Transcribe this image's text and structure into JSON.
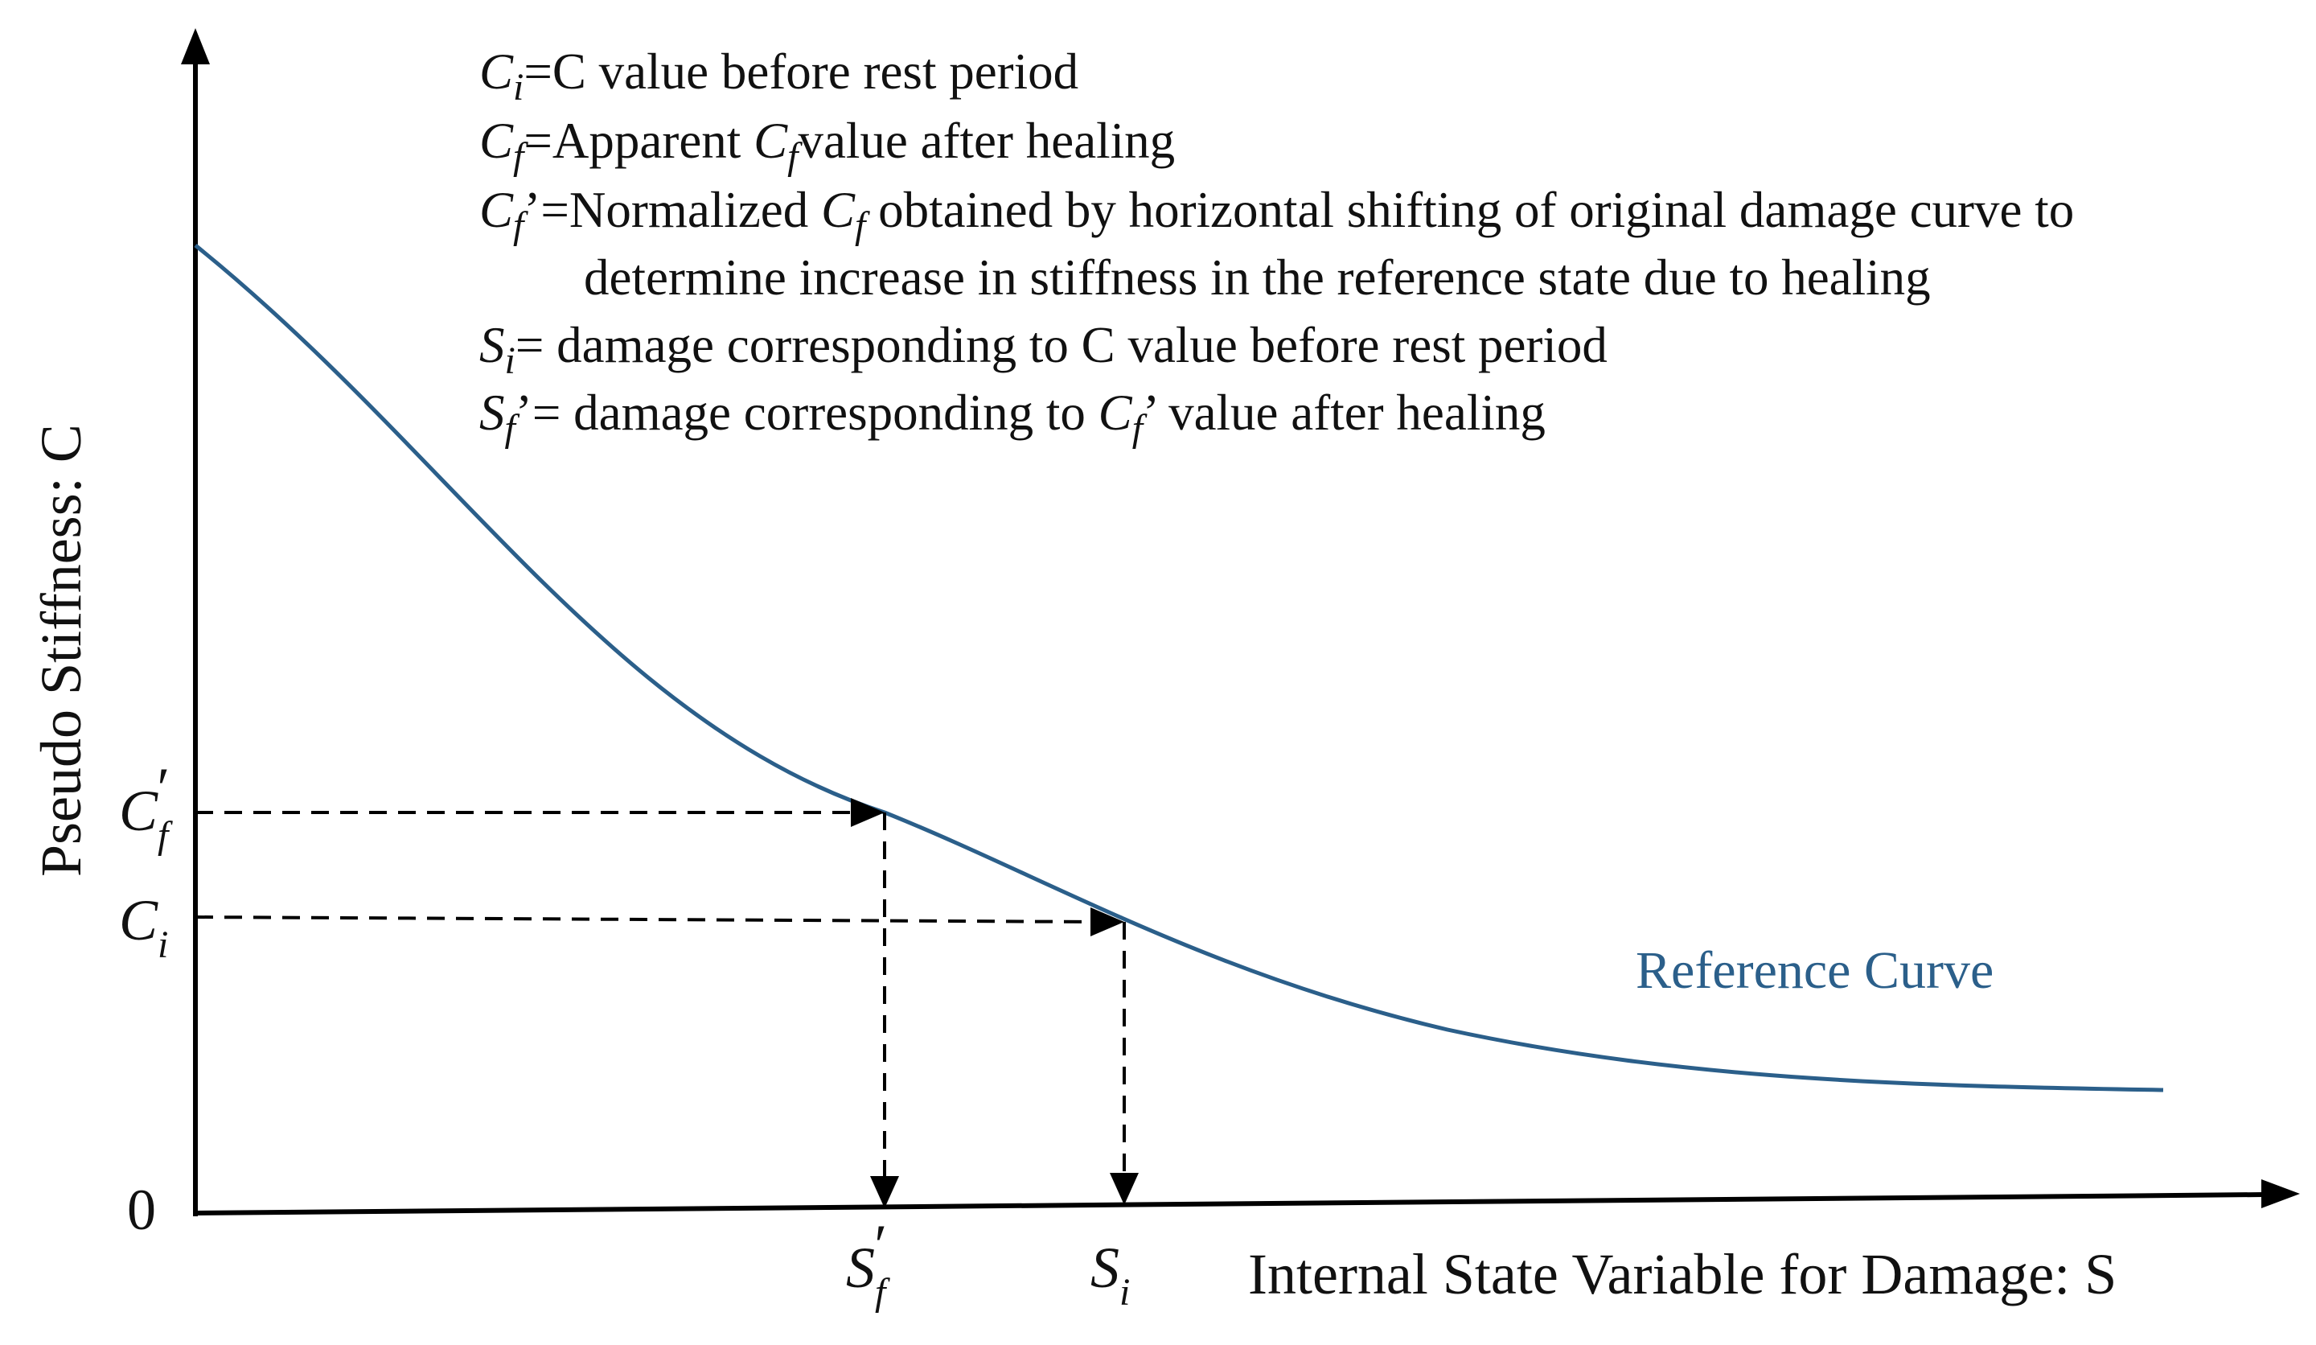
{
  "legend": {
    "ci": {
      "sym": "C",
      "sub": "i",
      "text": "=C value before rest period"
    },
    "cf": {
      "sym": "C",
      "sub": "f",
      "text1": "=Apparent ",
      "sym2": "C",
      "sub2": "f",
      "text2": "value after healing"
    },
    "cfp": {
      "sym": "C",
      "sub": "f",
      "prime": "’",
      "text1": "=Normalized ",
      "sym2": "C",
      "sub2": "f",
      "text2": " obtained by horizontal shifting of original damage curve to",
      "line2": "determine  increase in stiffness in the reference state due to healing"
    },
    "si": {
      "sym": "S",
      "sub": "i",
      "text": "= damage corresponding to C value before rest period"
    },
    "sfp": {
      "sym": "S",
      "sub": "f",
      "prime": "’",
      "text1": "= damage corresponding to ",
      "sym2": "C",
      "sub2": "f",
      "prime2": "’",
      "text2": " value after healing"
    }
  },
  "axes": {
    "y_label": "Pseudo Stiffness: C",
    "x_label": "Internal State Variable for Damage: S",
    "origin_label": "0"
  },
  "ticks": {
    "cf_prime": {
      "sym": "C",
      "sub": "f",
      "prime": "′"
    },
    "ci": {
      "sym": "C",
      "sub": "i"
    },
    "sf_prime": {
      "sym": "S",
      "sub": "f",
      "prime": "′"
    },
    "si": {
      "sym": "S",
      "sub": "i"
    }
  },
  "curve": {
    "label": "Reference Curve",
    "color": "#2b5f8a"
  },
  "colors": {
    "axis": "#000000",
    "dashed": "#000000"
  }
}
